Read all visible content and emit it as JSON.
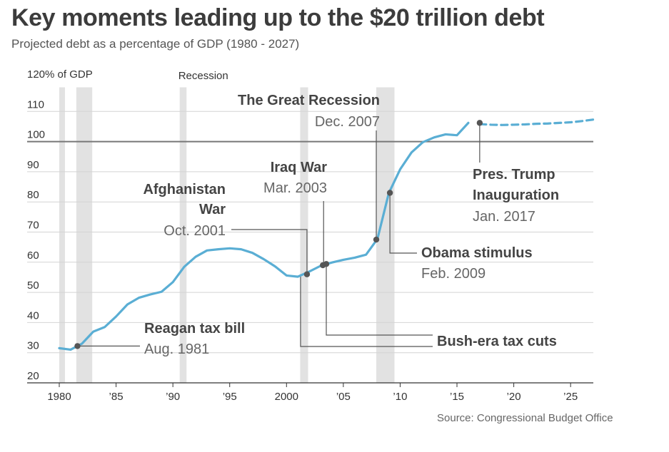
{
  "title": "Key moments leading up to the $20 trillion debt",
  "subtitle": "Projected debt as a percentage of GDP (1980 - 2027)",
  "source": "Source: Congressional Budget Office",
  "chart_data": {
    "type": "line",
    "ylabel": "120% of GDP",
    "ylim": [
      20,
      120
    ],
    "xlim": [
      1980,
      2027
    ],
    "yticks": [
      120,
      110,
      100,
      90,
      80,
      70,
      60,
      50,
      40,
      30,
      20
    ],
    "ytick_labels": [
      "120% of GDP",
      "110",
      "100",
      "90",
      "80",
      "70",
      "60",
      "50",
      "40",
      "30",
      "20"
    ],
    "xticks": [
      1980,
      1985,
      1990,
      1995,
      2000,
      2005,
      2010,
      2015,
      2020,
      2025
    ],
    "xtick_labels": [
      "1980",
      "’85",
      "’90",
      "’95",
      "2000",
      "’05",
      "’10",
      "’15",
      "’20",
      "’25"
    ],
    "reference_line": 100,
    "grid": true,
    "recession_label": "Recession",
    "recessions": [
      [
        1980.0,
        1980.5
      ],
      [
        1981.5,
        1982.9
      ],
      [
        1990.6,
        1991.2
      ],
      [
        2001.2,
        2001.9
      ],
      [
        2007.9,
        2009.5
      ]
    ],
    "series": [
      {
        "style": "actual",
        "color": "#5aaed4",
        "x": [
          1980,
          1981,
          1982,
          1983,
          1984,
          1985,
          1986,
          1987,
          1988,
          1989,
          1990,
          1991,
          1992,
          1993,
          1994,
          1995,
          1996,
          1997,
          1998,
          1999,
          2000,
          2001,
          2002,
          2003,
          2004,
          2005,
          2006,
          2007,
          2008,
          2009,
          2010,
          2011,
          2012,
          2013,
          2014,
          2015,
          2016
        ],
        "values": [
          31.5,
          31.0,
          33.0,
          37.0,
          38.5,
          42.0,
          46.0,
          48.2,
          49.3,
          50.2,
          53.4,
          58.5,
          61.8,
          63.9,
          64.3,
          64.6,
          64.3,
          63.1,
          61.0,
          58.6,
          55.6,
          55.2,
          56.9,
          58.8,
          59.9,
          60.8,
          61.5,
          62.5,
          67.7,
          82.9,
          90.8,
          96.4,
          99.8,
          101.4,
          102.4,
          102.1,
          106.2
        ]
      },
      {
        "style": "projected",
        "color": "#5aaed4",
        "x": [
          2017,
          2018,
          2019,
          2020,
          2021,
          2022,
          2023,
          2024,
          2025,
          2026,
          2027
        ],
        "values": [
          105.8,
          105.6,
          105.5,
          105.6,
          105.7,
          105.9,
          106.0,
          106.2,
          106.4,
          106.8,
          107.3
        ]
      }
    ],
    "annotations": [
      {
        "lines": [
          "Reagan tax bill"
        ],
        "date": "Aug. 1981",
        "x": 1981.6,
        "y": 32.2
      },
      {
        "lines": [
          "Afghanistan",
          "War"
        ],
        "date": "Oct. 2001",
        "x": 2001.8,
        "y": 56.0
      },
      {
        "lines": [
          "Iraq War"
        ],
        "date": "Mar. 2003",
        "x": 2003.2,
        "y": 59.0
      },
      {
        "lines": [
          "Bush-era tax cuts"
        ],
        "date": "",
        "x": 2003.5,
        "y": 59.4
      },
      {
        "lines": [
          "The Great Recession"
        ],
        "date": "Dec. 2007",
        "x": 2007.9,
        "y": 67.5
      },
      {
        "lines": [
          "Obama stimulus"
        ],
        "date": "Feb. 2009",
        "x": 2009.1,
        "y": 83.0
      },
      {
        "lines": [
          "Pres. Trump",
          "Inauguration"
        ],
        "date": "Jan. 2017",
        "x": 2017.0,
        "y": 106.2
      }
    ]
  }
}
